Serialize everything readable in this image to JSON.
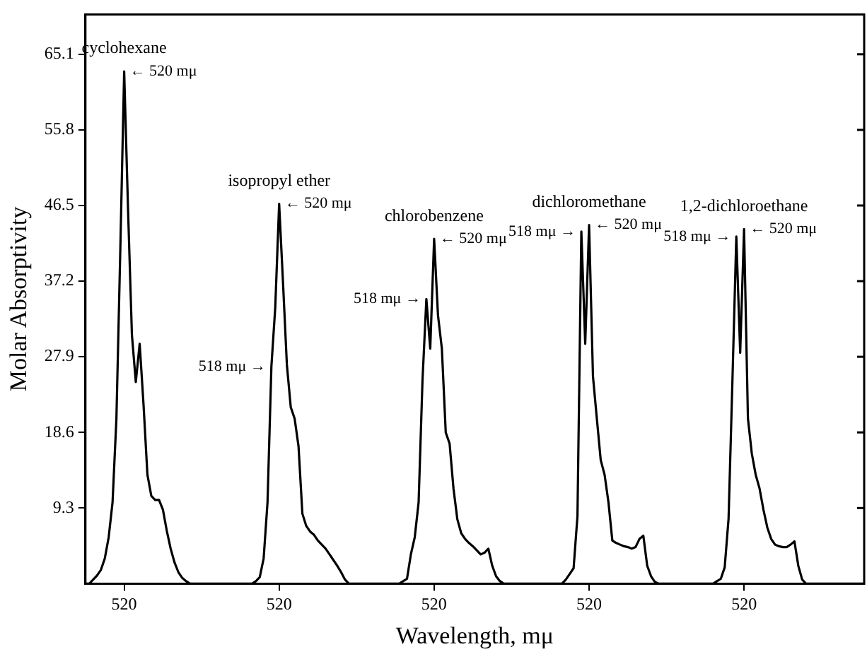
{
  "chart_data": {
    "type": "line",
    "xlabel": "Wavelength, mμ",
    "ylabel": "Molar Absorptivity",
    "categories": [
      null,
      null,
      null,
      null,
      null,
      null,
      null,
      null,
      null,
      null,
      "520",
      null,
      null,
      null,
      null,
      null,
      null,
      null,
      null,
      null,
      null,
      null,
      null,
      null,
      null,
      null,
      null,
      null,
      null,
      null,
      null,
      null,
      null,
      null,
      null,
      null,
      null,
      null,
      null,
      null,
      null,
      null,
      null,
      null,
      null,
      null,
      null,
      null,
      null,
      null,
      "520",
      null,
      null,
      null,
      null,
      null,
      null,
      null,
      null,
      null,
      null,
      null,
      null,
      null,
      null,
      null,
      null,
      null,
      null,
      null,
      null,
      null,
      null,
      null,
      null,
      null,
      null,
      null,
      null,
      null,
      null,
      null,
      null,
      null,
      null,
      null,
      null,
      null,
      null,
      null,
      "520",
      null,
      null,
      null,
      null,
      null,
      null,
      null,
      null,
      null,
      null,
      null,
      null,
      null,
      null,
      null,
      null,
      null,
      null,
      null,
      null,
      null,
      null,
      null,
      null,
      null,
      null,
      null,
      null,
      null,
      null,
      null,
      null,
      null,
      null,
      null,
      null,
      null,
      null,
      null,
      "520",
      null,
      null,
      null,
      null,
      null,
      null,
      null,
      null,
      null,
      null,
      null,
      null,
      null,
      null,
      null,
      null,
      null,
      null,
      null,
      null,
      null,
      null,
      null,
      null,
      null,
      null,
      null,
      null,
      null,
      null,
      null,
      null,
      null,
      null,
      null,
      null,
      null,
      null,
      null,
      "520",
      null,
      null,
      null,
      null,
      null,
      null,
      null,
      null,
      null,
      null,
      null,
      null,
      null,
      null,
      null,
      null,
      null,
      null,
      null,
      null,
      null,
      null,
      null,
      null,
      null,
      null,
      null,
      null,
      null,
      null,
      null
    ],
    "series": [
      {
        "color": "#000000",
        "values": [
          0,
          0,
          0.5,
          1.0,
          1.7,
          3.1,
          5.7,
          10.0,
          20.3,
          41,
          63.0,
          46,
          30.6,
          24.8,
          29.5,
          22,
          13.4,
          10.8,
          10.3,
          10.3,
          9.1,
          6.5,
          4.3,
          2.6,
          1.4,
          0.7,
          0.3,
          0,
          0,
          0,
          0,
          0,
          0,
          0,
          0,
          0,
          0,
          0,
          0,
          0,
          0,
          0,
          0,
          0,
          0.3,
          0.8,
          3.1,
          10.0,
          26.7,
          34,
          46.7,
          37.0,
          26.9,
          21.7,
          20.3,
          16.9,
          8.6,
          7.1,
          6.4,
          6.0,
          5.3,
          4.8,
          4.3,
          3.6,
          2.9,
          2.2,
          1.4,
          0.5,
          0,
          0,
          0,
          0,
          0,
          0,
          0,
          0,
          0,
          0,
          0,
          0,
          0,
          0,
          0.3,
          0.6,
          3.6,
          5.7,
          10.0,
          25.0,
          35.0,
          28.9,
          42.4,
          33,
          28.9,
          18.6,
          17.2,
          11.7,
          7.9,
          6.2,
          5.5,
          5.0,
          4.6,
          4.1,
          3.6,
          3.8,
          4.3,
          2.2,
          0.9,
          0.3,
          0,
          0,
          0,
          0,
          0,
          0,
          0,
          0,
          0,
          0,
          0,
          0,
          0,
          0,
          0,
          0,
          0.5,
          1.2,
          1.9,
          8.3,
          43.3,
          29.5,
          44.1,
          25.5,
          20.3,
          15.2,
          13.4,
          10.0,
          5.3,
          5.0,
          4.8,
          4.6,
          4.5,
          4.3,
          4.5,
          5.5,
          5.9,
          2.2,
          0.9,
          0.2,
          0,
          0,
          0,
          0,
          0,
          0,
          0,
          0,
          0,
          0,
          0,
          0,
          0,
          0,
          0,
          0.3,
          0.6,
          2.0,
          8.0,
          25,
          42.7,
          28.4,
          43.6,
          20.3,
          16.0,
          13.4,
          11.7,
          9.1,
          6.9,
          5.5,
          4.8,
          4.6,
          4.5,
          4.5,
          4.8,
          5.2,
          2.2,
          0.5,
          0,
          0,
          0,
          0,
          0,
          0,
          0,
          0,
          0,
          0,
          0,
          0,
          0,
          0,
          0,
          0
        ]
      }
    ],
    "ylim": [
      0,
      70
    ],
    "yticks": [
      9.3,
      18.6,
      27.9,
      37.2,
      46.5,
      55.8,
      65.1
    ],
    "annotations": [
      {
        "text": "cyclohexane",
        "y": 63.0
      },
      "← 520 mμ",
      {
        "text": "isopropyl ether",
        "y": 46.7
      },
      "← 520 mμ",
      "518 mμ →",
      {
        "text": "chlorobenzene",
        "y": 42.4
      },
      "← 520 mμ",
      "518 mμ →",
      {
        "text": "dichloromethane",
        "y": 44.1
      },
      "← 520 mμ",
      "518 mμ →",
      {
        "text": "1,2-dichloroethane",
        "y": 43.6
      },
      "← 520 mμ",
      "518 mμ →"
    ]
  }
}
